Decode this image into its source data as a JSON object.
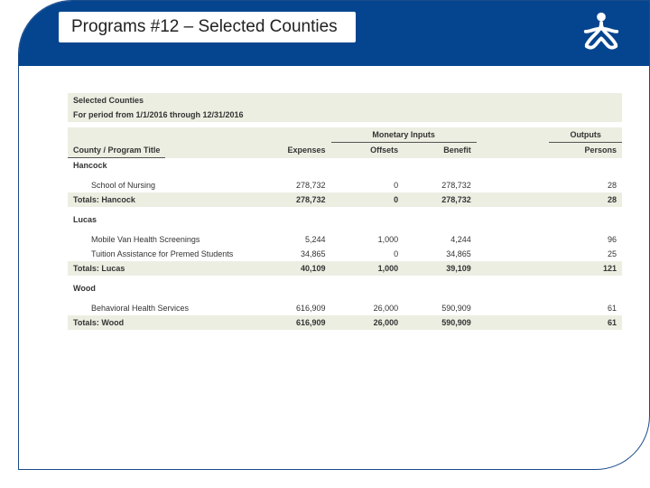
{
  "header": {
    "title": "Programs #12 – Selected Counties",
    "header_bg": "#05458f",
    "border_color": "#1a4b8c"
  },
  "report": {
    "title": "Selected Counties",
    "period": "For period from 1/1/2016 through 12/31/2016",
    "band_color": "#edeee2",
    "font_size_pt": 9,
    "section_headers": {
      "monetary": "Monetary Inputs",
      "outputs": "Outputs"
    },
    "col_headers": {
      "title": "County / Program Title",
      "expenses": "Expenses",
      "offsets": "Offsets",
      "benefit": "Benefit",
      "persons": "Persons"
    },
    "groups": [
      {
        "county": "Hancock",
        "rows": [
          {
            "title": "School of Nursing",
            "expenses": "278,732",
            "offsets": "0",
            "benefit": "278,732",
            "persons": "28"
          }
        ],
        "totals_label": "Totals: Hancock",
        "totals": {
          "expenses": "278,732",
          "offsets": "0",
          "benefit": "278,732",
          "persons": "28"
        }
      },
      {
        "county": "Lucas",
        "rows": [
          {
            "title": "Mobile Van Health Screenings",
            "expenses": "5,244",
            "offsets": "1,000",
            "benefit": "4,244",
            "persons": "96"
          },
          {
            "title": "Tuition Assistance for Premed Students",
            "expenses": "34,865",
            "offsets": "0",
            "benefit": "34,865",
            "persons": "25"
          }
        ],
        "totals_label": "Totals: Lucas",
        "totals": {
          "expenses": "40,109",
          "offsets": "1,000",
          "benefit": "39,109",
          "persons": "121"
        }
      },
      {
        "county": "Wood",
        "rows": [
          {
            "title": "Behavioral Health Services",
            "expenses": "616,909",
            "offsets": "26,000",
            "benefit": "590,909",
            "persons": "61"
          }
        ],
        "totals_label": "Totals: Wood",
        "totals": {
          "expenses": "616,909",
          "offsets": "26,000",
          "benefit": "590,909",
          "persons": "61"
        }
      }
    ]
  }
}
